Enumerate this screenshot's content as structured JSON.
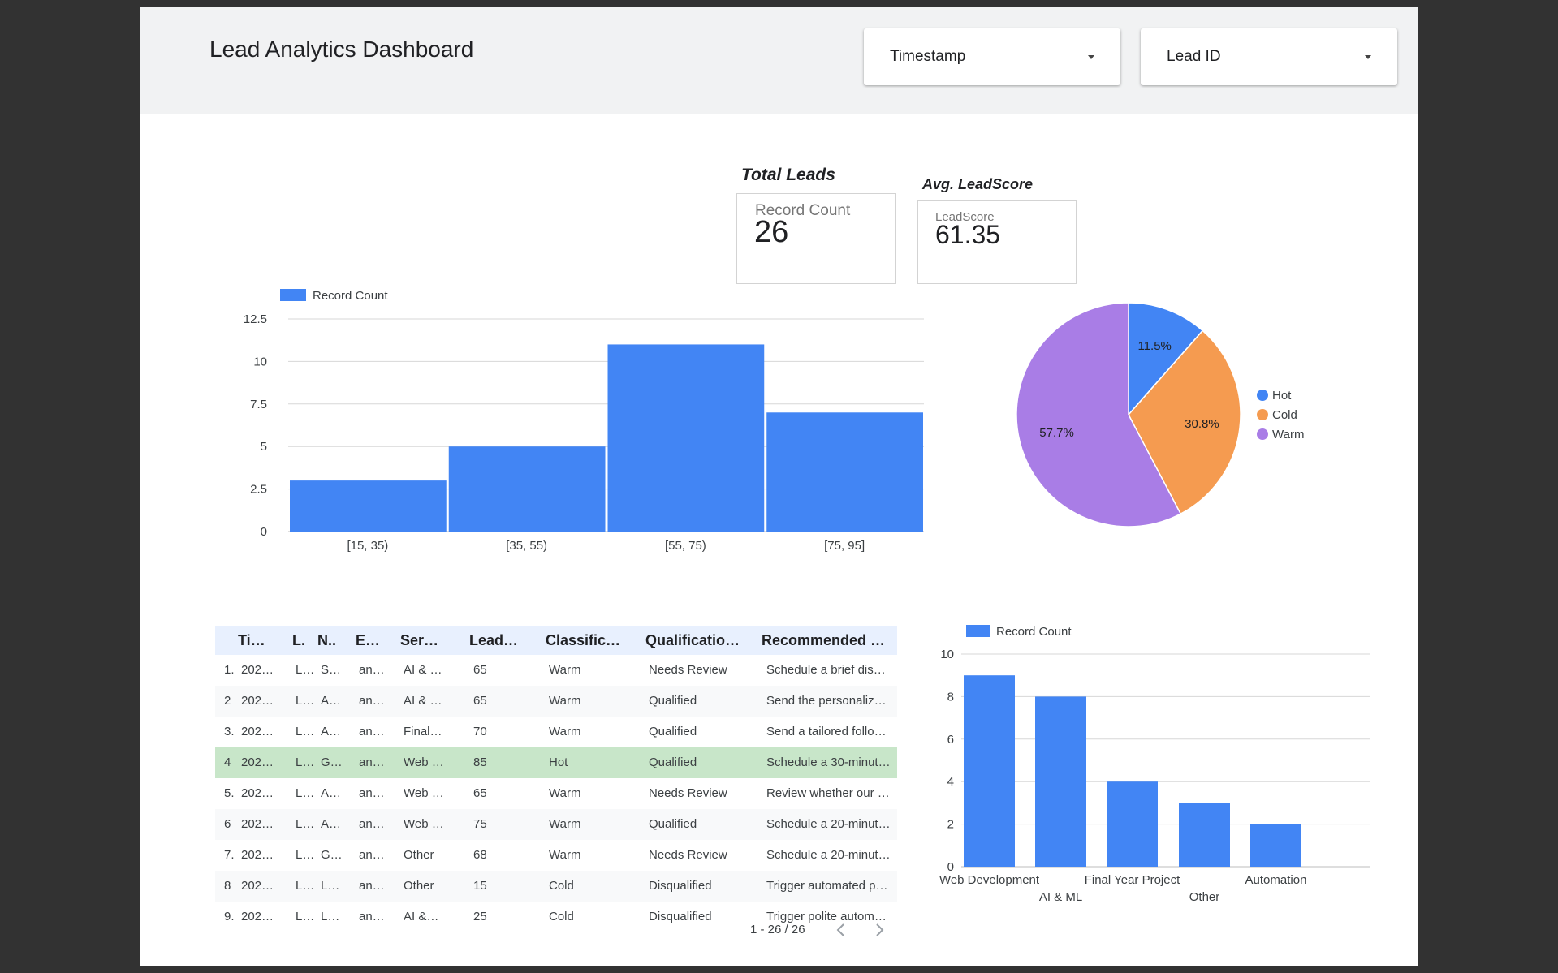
{
  "header": {
    "title": "Lead Analytics Dashboard",
    "filters": [
      {
        "label": "Timestamp"
      },
      {
        "label": "Lead ID"
      }
    ]
  },
  "kpis": {
    "total": {
      "title": "Total Leads",
      "name": "Record Count",
      "value": "26"
    },
    "avg": {
      "title": "Avg. LeadScore",
      "name": "LeadScore",
      "value": "61.35"
    }
  },
  "colors": {
    "blue": "#4285f4",
    "orange": "#f59b50",
    "purple": "#a97de6",
    "highlight": "#c8e6c9",
    "header_bg": "#f1f2f3"
  },
  "chart_data": [
    {
      "type": "bar",
      "legend": [
        "Record Count"
      ],
      "legend_position": "top-left",
      "categories": [
        "[15, 35)",
        "[35, 55)",
        "[55, 75)",
        "[75, 95]"
      ],
      "series": [
        {
          "name": "Record Count",
          "values": [
            3,
            5,
            11,
            7
          ]
        }
      ],
      "yticks": [
        "0",
        "2.5",
        "5",
        "7.5",
        "10",
        "12.5"
      ],
      "ylim": [
        0,
        12.5
      ],
      "grid": true
    },
    {
      "type": "pie",
      "legend_position": "right",
      "labels": [
        "Hot",
        "Cold",
        "Warm"
      ],
      "values": [
        11.5,
        30.8,
        57.7
      ],
      "value_labels": [
        "11.5%",
        "30.8%",
        "57.7%"
      ]
    },
    {
      "type": "bar",
      "legend": [
        "Record Count"
      ],
      "legend_position": "top-left",
      "categories": [
        "Web Development",
        "AI & ML",
        "Final Year Project",
        "Other",
        "Automation"
      ],
      "series": [
        {
          "name": "Record Count",
          "values": [
            9,
            8,
            4,
            3,
            2
          ]
        }
      ],
      "yticks": [
        "0",
        "2",
        "4",
        "6",
        "8",
        "10"
      ],
      "ylim": [
        0,
        10
      ],
      "grid": true
    }
  ],
  "table": {
    "headers": [
      "Ti…",
      "L.",
      "N..",
      "E…",
      "Ser…",
      "Lead…",
      "Classific…",
      "Qualificatio…",
      "Recommended …"
    ],
    "rows": [
      {
        "idx": "1.",
        "c": [
          "202…",
          "L…",
          "S…",
          "an…",
          "AI & …",
          "65",
          "Warm",
          "Needs Review",
          "Schedule a brief dis…"
        ]
      },
      {
        "idx": "2",
        "c": [
          "202…",
          "L…",
          "A…",
          "an…",
          "AI & …",
          "65",
          "Warm",
          "Qualified",
          "Send the personaliz…"
        ]
      },
      {
        "idx": "3.",
        "c": [
          "202…",
          "L…",
          "A…",
          "an…",
          "Final…",
          "70",
          "Warm",
          "Qualified",
          "Send a tailored follo…"
        ]
      },
      {
        "idx": "4",
        "c": [
          "202…",
          "L…",
          "G…",
          "an…",
          "Web …",
          "85",
          "Hot",
          "Qualified",
          "Schedule a 30-minut…"
        ]
      },
      {
        "idx": "5.",
        "c": [
          "202…",
          "L…",
          "A…",
          "an…",
          "Web …",
          "65",
          "Warm",
          "Needs Review",
          "Review whether our …"
        ]
      },
      {
        "idx": "6",
        "c": [
          "202…",
          "L…",
          "A…",
          "an…",
          "Web …",
          "75",
          "Warm",
          "Qualified",
          "Schedule a 20-minut…"
        ]
      },
      {
        "idx": "7.",
        "c": [
          "202…",
          "L…",
          "G…",
          "an…",
          "Other",
          "68",
          "Warm",
          "Needs Review",
          "Schedule a 20-minut…"
        ]
      },
      {
        "idx": "8",
        "c": [
          "202…",
          "L…",
          "L…",
          "an…",
          "Other",
          "15",
          "Cold",
          "Disqualified",
          "Trigger automated p…"
        ]
      },
      {
        "idx": "9.",
        "c": [
          "202…",
          "L…",
          "L…",
          "an…",
          "AI &…",
          "25",
          "Cold",
          "Disqualified",
          "Trigger polite autom…"
        ]
      }
    ],
    "pagination": "1 - 26 / 26"
  }
}
